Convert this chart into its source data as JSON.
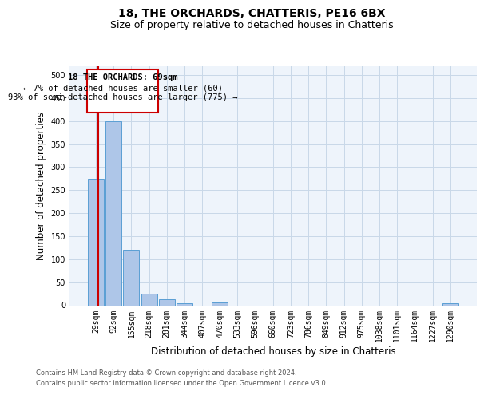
{
  "title": "18, THE ORCHARDS, CHATTERIS, PE16 6BX",
  "subtitle": "Size of property relative to detached houses in Chatteris",
  "xlabel": "Distribution of detached houses by size in Chatteris",
  "ylabel": "Number of detached properties",
  "bar_color": "#aec6e8",
  "bar_edge_color": "#5a9fd4",
  "annotation_box_color": "#cc0000",
  "annotation_line_color": "#cc0000",
  "grid_color": "#c8d8e8",
  "bg_color": "#eef4fb",
  "categories": [
    "29sqm",
    "92sqm",
    "155sqm",
    "218sqm",
    "281sqm",
    "344sqm",
    "407sqm",
    "470sqm",
    "533sqm",
    "596sqm",
    "660sqm",
    "723sqm",
    "786sqm",
    "849sqm",
    "912sqm",
    "975sqm",
    "1038sqm",
    "1101sqm",
    "1164sqm",
    "1227sqm",
    "1290sqm"
  ],
  "values": [
    275,
    400,
    120,
    26,
    13,
    5,
    0,
    6,
    0,
    0,
    0,
    0,
    0,
    0,
    0,
    0,
    0,
    0,
    0,
    0,
    5
  ],
  "ylim": [
    0,
    520
  ],
  "yticks": [
    0,
    50,
    100,
    150,
    200,
    250,
    300,
    350,
    400,
    450,
    500
  ],
  "annotation_text_line1": "18 THE ORCHARDS: 69sqm",
  "annotation_text_line2": "← 7% of detached houses are smaller (60)",
  "annotation_text_line3": "93% of semi-detached houses are larger (775) →",
  "footer_line1": "Contains HM Land Registry data © Crown copyright and database right 2024.",
  "footer_line2": "Contains public sector information licensed under the Open Government Licence v3.0.",
  "title_fontsize": 10,
  "subtitle_fontsize": 9,
  "ylabel_fontsize": 8.5,
  "xlabel_fontsize": 8.5,
  "tick_fontsize": 7,
  "annotation_fontsize": 7.5,
  "footer_fontsize": 6
}
